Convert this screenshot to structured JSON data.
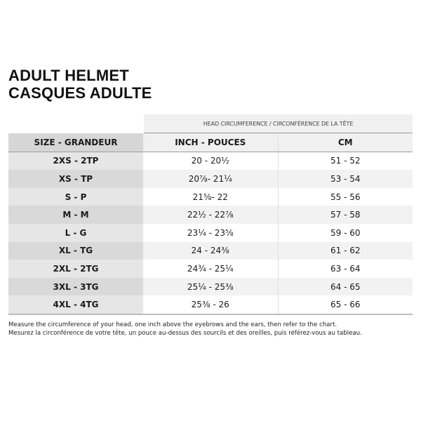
{
  "title": {
    "line1": "ADULT HELMET",
    "line2": "CASQUES ADULTE"
  },
  "table": {
    "group_header": "HEAD CIRCUMFERENCE / CIRCONFÉRENCE DE LA TÊTE",
    "columns": [
      "SIZE - GRANDEUR",
      "INCH - POUCES",
      "CM"
    ],
    "rows": [
      [
        "2XS - 2TP",
        "20 - 20½",
        "51 - 52"
      ],
      [
        "XS - TP",
        "20⅞- 21¼",
        "53 - 54"
      ],
      [
        "S - P",
        "21⅝- 22",
        "55 - 56"
      ],
      [
        "M - M",
        "22½ - 22⅞",
        "57 - 58"
      ],
      [
        "L - G",
        "23¼ - 23⅝",
        "59 - 60"
      ],
      [
        "XL - TG",
        "24 - 24⅜",
        "61 - 62"
      ],
      [
        "2XL - 2TG",
        "24¾ - 25¼",
        "63 - 64"
      ],
      [
        "3XL - 3TG",
        "25¼ - 25⅜",
        "64 - 65"
      ],
      [
        "4XL - 4TG",
        "25⅜ - 26",
        "65 - 66"
      ]
    ]
  },
  "notes": [
    "Measure the circumference of your head, one inch above the eyebrows and the ears, then refer to the chart.",
    "Mesurez la circonférence de votre tête, un pouce au-dessus des sourcils et des oreilles, puis référez-vous au tableau."
  ]
}
